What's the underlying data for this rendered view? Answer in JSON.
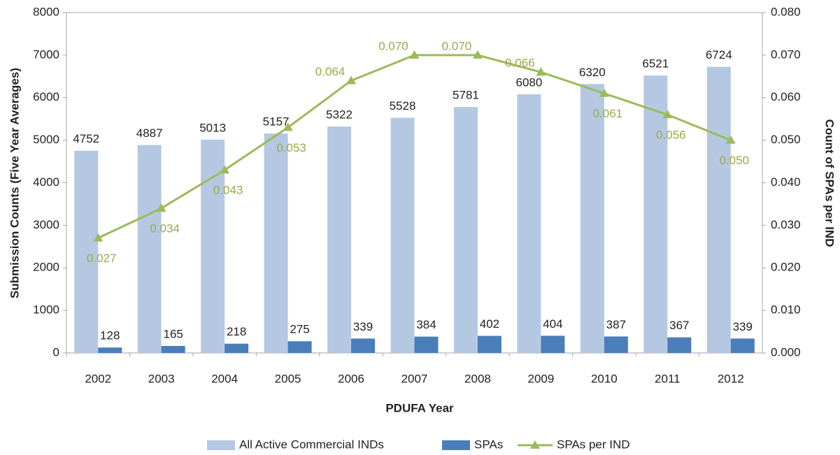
{
  "chart_data": {
    "type": "bar",
    "categories": [
      "2002",
      "2003",
      "2004",
      "2005",
      "2006",
      "2007",
      "2008",
      "2009",
      "2010",
      "2011",
      "2012"
    ],
    "x_label": "PDUFA Year",
    "y_label": "Submission Counts  (Five Year Averages)",
    "y2_label": "Count of SPAs per IND",
    "ylim": [
      0,
      8000
    ],
    "yticks": [
      0,
      1000,
      2000,
      3000,
      4000,
      5000,
      6000,
      7000,
      8000
    ],
    "y2lim": [
      0,
      0.08
    ],
    "y2ticks": [
      {
        "value": 0,
        "label": "0.000"
      },
      {
        "value": 0.01,
        "label": "0.010"
      },
      {
        "value": 0.02,
        "label": "0.020"
      },
      {
        "value": 0.03,
        "label": "0.030"
      },
      {
        "value": 0.04,
        "label": "0.040"
      },
      {
        "value": 0.05,
        "label": "0.050"
      },
      {
        "value": 0.06,
        "label": "0.060"
      },
      {
        "value": 0.07,
        "label": "0.070"
      },
      {
        "value": 0.08,
        "label": "0.080"
      }
    ],
    "grid": false,
    "legend": "bottom",
    "series": [
      {
        "name": "All Active Commercial INDs",
        "type": "bar",
        "color": "#b4c8e2",
        "values": [
          4752,
          4887,
          5013,
          5157,
          5322,
          5528,
          5781,
          6080,
          6320,
          6521,
          6724
        ]
      },
      {
        "name": "SPAs",
        "type": "bar",
        "color": "#4a7ebb",
        "values": [
          128,
          165,
          218,
          275,
          339,
          384,
          402,
          404,
          387,
          367,
          339
        ]
      },
      {
        "name": "SPAs per IND",
        "type": "line",
        "axis": "y2",
        "color": "#9bbb59",
        "values": [
          0.027,
          0.034,
          0.043,
          0.053,
          0.064,
          0.07,
          0.07,
          0.066,
          0.061,
          0.056,
          0.05
        ],
        "value_labels": [
          "0.027",
          "0.034",
          "0.043",
          "0.053",
          "0.064",
          "0.070",
          "0.070",
          "0.066",
          "0.061",
          "0.056",
          "0.050"
        ]
      }
    ]
  }
}
